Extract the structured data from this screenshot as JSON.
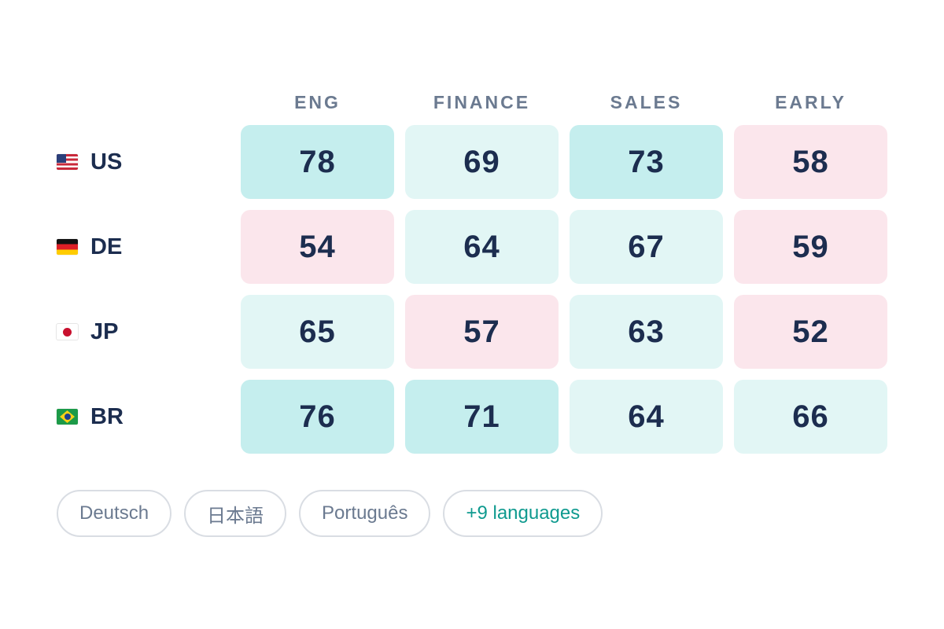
{
  "chart_data": {
    "type": "heatmap",
    "columns": [
      "ENG",
      "FINANCE",
      "SALES",
      "EARLY"
    ],
    "rows": [
      {
        "code": "US",
        "flag": "us-flag-icon",
        "values": [
          78,
          69,
          73,
          58
        ]
      },
      {
        "code": "DE",
        "flag": "de-flag-icon",
        "values": [
          54,
          64,
          67,
          59
        ]
      },
      {
        "code": "JP",
        "flag": "jp-flag-icon",
        "values": [
          65,
          57,
          63,
          52
        ]
      },
      {
        "code": "BR",
        "flag": "br-flag-icon",
        "values": [
          76,
          71,
          64,
          66
        ]
      }
    ],
    "color_scale": {
      "high": "#c5eeee",
      "mid": "#e2f6f5",
      "low": "#fbe6ec"
    }
  },
  "languages": {
    "items": [
      "Deutsch",
      "日本語",
      "Português"
    ],
    "more_label": "+9 languages"
  },
  "colors": {
    "text_dark": "#1c2d4f",
    "text_muted": "#6b7a90",
    "accent": "#0f9a8f"
  }
}
